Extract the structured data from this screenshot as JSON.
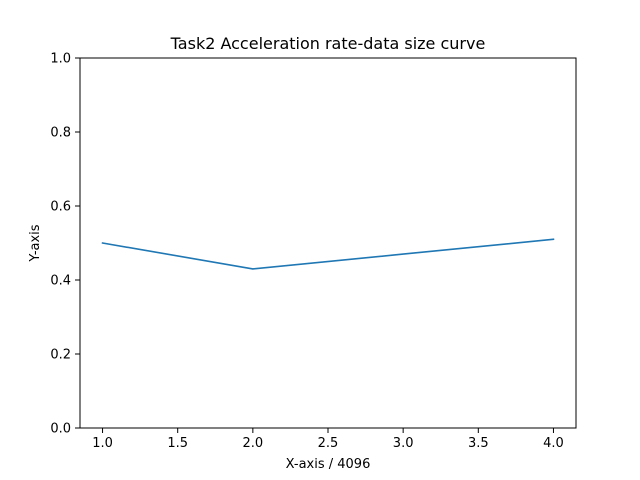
{
  "chart_data": {
    "type": "line",
    "title": "Task2 Acceleration rate-data size curve",
    "xlabel": "X-axis / 4096",
    "ylabel": "Y-axis",
    "xlim": [
      0.85,
      4.15
    ],
    "ylim": [
      0.0,
      1.0
    ],
    "x_ticks": [
      "1.0",
      "1.5",
      "2.0",
      "2.5",
      "3.0",
      "3.5",
      "4.0"
    ],
    "y_ticks": [
      "0.0",
      "0.2",
      "0.4",
      "0.6",
      "0.8",
      "1.0"
    ],
    "grid": false,
    "series": [
      {
        "color": "#1f77b4",
        "x": [
          1.0,
          2.0,
          3.0,
          4.0
        ],
        "y": [
          0.5,
          0.43,
          0.47,
          0.51
        ]
      }
    ]
  }
}
